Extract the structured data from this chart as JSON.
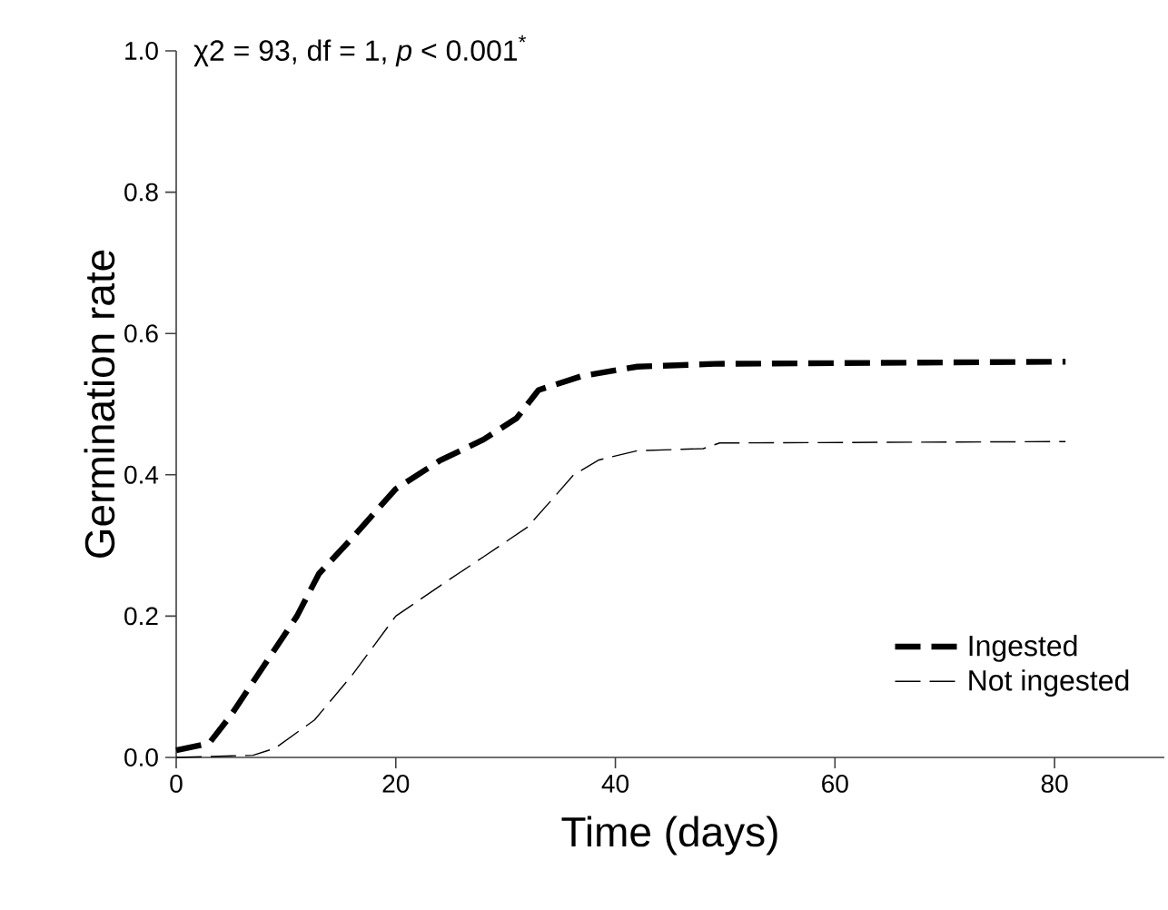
{
  "chart_data": {
    "type": "line",
    "xlabel": "Time (days)",
    "ylabel": "Germination rate",
    "annotations": [
      "χ2 = 93, df = 1, *p* < 0.001$^{*}$"
    ],
    "xlim": [
      0,
      90
    ],
    "xticks": [
      0,
      20,
      40,
      60,
      80
    ],
    "ylim": [
      0,
      1
    ],
    "yticks": [
      {
        "value": 0,
        "label": "0.0"
      },
      {
        "value": 0.2,
        "label": "0.2"
      },
      {
        "value": 0.4,
        "label": "0.4"
      },
      {
        "value": 0.6,
        "label": "0.6"
      },
      {
        "value": 0.8,
        "label": "0.8"
      },
      {
        "value": 1,
        "label": "1.0"
      }
    ],
    "legend": "bottom right",
    "grid": false,
    "line_style": "dashed",
    "marker": "none",
    "series": [
      {
        "name": "Ingested",
        "color": "#000000",
        "x": [
          0,
          3,
          5,
          8,
          11,
          13,
          16,
          20,
          24,
          28,
          31,
          33,
          37,
          42,
          49,
          81
        ],
        "values": [
          0.01,
          0.02,
          0.06,
          0.13,
          0.2,
          0.26,
          0.31,
          0.38,
          0.42,
          0.45,
          0.48,
          0.52,
          0.54,
          0.553,
          0.557,
          0.56
        ]
      },
      {
        "name": "Not ingested",
        "color": "#000000",
        "x": [
          0,
          7,
          9,
          12.6,
          16,
          20,
          25,
          28,
          32,
          34.4,
          36.2,
          38.5,
          42,
          48,
          49.5,
          81
        ],
        "values": [
          0,
          0.003,
          0.013,
          0.053,
          0.116,
          0.2,
          0.253,
          0.284,
          0.326,
          0.368,
          0.4,
          0.421,
          0.434,
          0.437,
          0.445,
          0.447
        ]
      }
    ]
  }
}
